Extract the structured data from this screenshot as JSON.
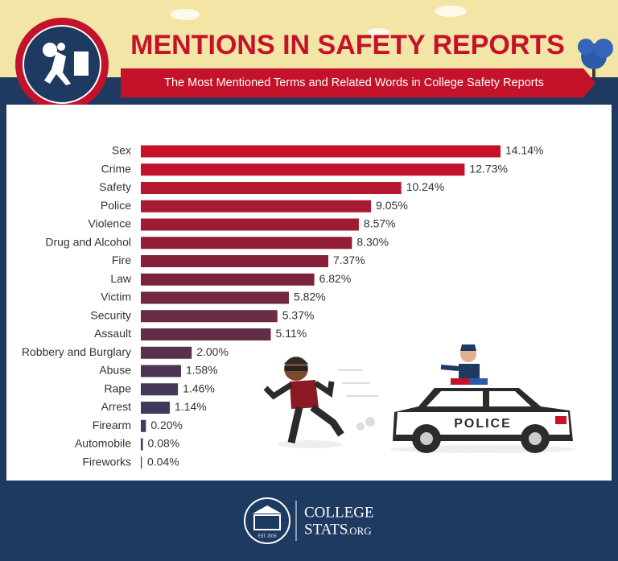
{
  "header": {
    "title": "MENTIONS IN SAFETY REPORTS",
    "subtitle": "The Most Mentioned Terms and Related Words in College Safety Reports"
  },
  "chart_data": {
    "type": "bar",
    "orientation": "horizontal",
    "categories": [
      "Sex",
      "Crime",
      "Safety",
      "Police",
      "Violence",
      "Drug and Alcohol",
      "Fire",
      "Law",
      "Victim",
      "Security",
      "Assault",
      "Robbery and Burglary",
      "Abuse",
      "Rape",
      "Arrest",
      "Firearm",
      "Automobile",
      "Fireworks"
    ],
    "values": [
      14.14,
      12.73,
      10.24,
      9.05,
      8.57,
      8.3,
      7.37,
      6.82,
      5.82,
      5.37,
      5.11,
      2.0,
      1.58,
      1.46,
      1.14,
      0.2,
      0.08,
      0.04
    ],
    "value_labels": [
      "14.14%",
      "12.73%",
      "10.24%",
      "9.05%",
      "8.57%",
      "8.30%",
      "7.37%",
      "6.82%",
      "5.82%",
      "5.37%",
      "5.11%",
      "2.00%",
      "1.58%",
      "1.46%",
      "1.14%",
      "0.20%",
      "0.08%",
      "0.04%"
    ],
    "colors": [
      "#c4122a",
      "#c0142e",
      "#b5172f",
      "#a81a31",
      "#9b1c34",
      "#931e36",
      "#872039",
      "#7c243c",
      "#722840",
      "#6a2b44",
      "#622e47",
      "#58314c",
      "#4c3453",
      "#463757",
      "#3f3a5c",
      "#3b3c5e",
      "#393e60",
      "#373f62"
    ]
  },
  "illustration": {
    "car_label": "POLICE"
  },
  "footer": {
    "brand_top": "COLLEGE",
    "brand_bottom": "STATS",
    "brand_suffix": ".ORG",
    "seal_text": "EST. 2016"
  }
}
